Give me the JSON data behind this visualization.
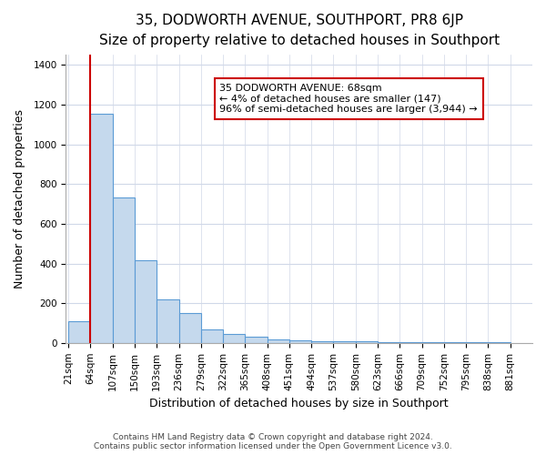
{
  "title": "35, DODWORTH AVENUE, SOUTHPORT, PR8 6JP",
  "subtitle": "Size of property relative to detached houses in Southport",
  "xlabel": "Distribution of detached houses by size in Southport",
  "ylabel": "Number of detached properties",
  "bin_labels": [
    "21sqm",
    "64sqm",
    "107sqm",
    "150sqm",
    "193sqm",
    "236sqm",
    "279sqm",
    "322sqm",
    "365sqm",
    "408sqm",
    "451sqm",
    "494sqm",
    "537sqm",
    "580sqm",
    "623sqm",
    "666sqm",
    "709sqm",
    "752sqm",
    "795sqm",
    "838sqm",
    "881sqm"
  ],
  "bar_heights_20": [
    110,
    1155,
    730,
    415,
    218,
    150,
    70,
    45,
    30,
    18,
    12,
    10,
    10,
    10,
    5,
    5,
    5,
    5,
    5,
    5
  ],
  "bar_color": "#c5d9ed",
  "bar_edge_color": "#5b9bd5",
  "property_line_color": "#cc0000",
  "ylim": [
    0,
    1450
  ],
  "yticks": [
    0,
    200,
    400,
    600,
    800,
    1000,
    1200,
    1400
  ],
  "annotation_text": "35 DODWORTH AVENUE: 68sqm\n← 4% of detached houses are smaller (147)\n96% of semi-detached houses are larger (3,944) →",
  "annotation_box_edge": "#cc0000",
  "footer_line1": "Contains HM Land Registry data © Crown copyright and database right 2024.",
  "footer_line2": "Contains public sector information licensed under the Open Government Licence v3.0.",
  "bg_color": "#ffffff",
  "grid_color": "#d0d8e8",
  "title_fontsize": 11,
  "subtitle_fontsize": 9,
  "axis_label_fontsize": 9,
  "tick_fontsize": 7.5,
  "annotation_fontsize": 8,
  "footer_fontsize": 6.5
}
